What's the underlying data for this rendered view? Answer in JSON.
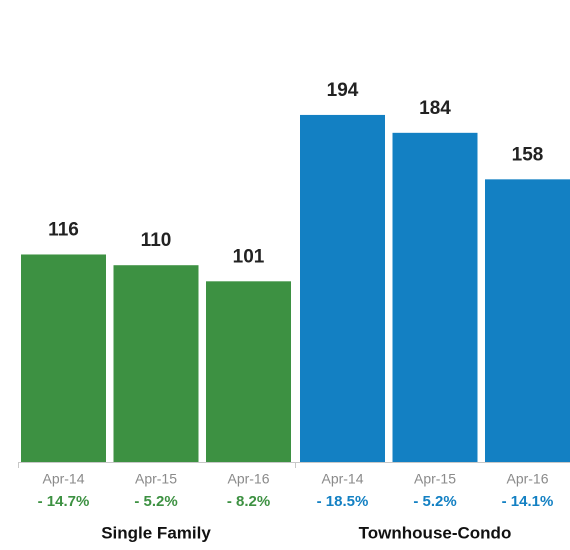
{
  "chart_data": {
    "type": "bar",
    "groups": [
      {
        "name": "Single Family",
        "color": "#3d9142",
        "categories": [
          "Apr-14",
          "Apr-15",
          "Apr-16"
        ],
        "values": [
          116,
          110,
          101
        ],
        "changes": [
          "- 14.7%",
          "- 5.2%",
          "- 8.2%"
        ]
      },
      {
        "name": "Townhouse-Condo",
        "color": "#1380c3",
        "categories": [
          "Apr-14",
          "Apr-15",
          "Apr-16"
        ],
        "values": [
          194,
          184,
          158
        ],
        "changes": [
          "- 18.5%",
          "- 5.2%",
          "- 14.1%"
        ]
      }
    ]
  }
}
